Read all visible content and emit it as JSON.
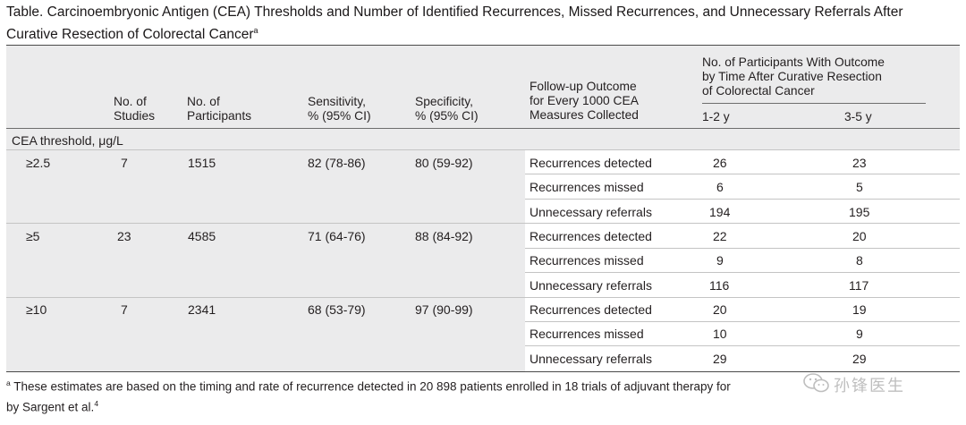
{
  "title": {
    "line1": "Table. Carcinoembryonic Antigen (CEA) Thresholds and Number of Identified Recurrences, Missed Recurrences, and Unnecessary Referrals After",
    "line2": "Curative Resection of Colorectal Cancer",
    "marker": "a"
  },
  "headers": {
    "studies": [
      "No. of",
      "Studies"
    ],
    "participants": [
      "No. of",
      "Participants"
    ],
    "sensitivity": [
      "Sensitivity,",
      "% (95% CI)"
    ],
    "specificity": [
      "Specificity,",
      "% (95% CI)"
    ],
    "followup": [
      "Follow-up Outcome",
      "for Every 1000 CEA",
      "Measures Collected"
    ],
    "outcome_group": [
      "No. of Participants With Outcome",
      "by Time After Curative Resection",
      "of Colorectal Cancer"
    ],
    "time1": "1-2 y",
    "time2": "3-5 y"
  },
  "section_label": "CEA threshold, μg/L",
  "groups": [
    {
      "threshold": "≥2.5",
      "studies": "7",
      "participants": "1515",
      "sensitivity": "82 (78-86)",
      "specificity": "80 (59-92)",
      "outcomes": [
        {
          "label": "Recurrences detected",
          "y12": "26",
          "y35": "23"
        },
        {
          "label": "Recurrences missed",
          "y12": "6",
          "y35": "5"
        },
        {
          "label": "Unnecessary referrals",
          "y12": "194",
          "y35": "195"
        }
      ]
    },
    {
      "threshold": "≥5",
      "studies": "23",
      "participants": "4585",
      "sensitivity": "71 (64-76)",
      "specificity": "88 (84-92)",
      "outcomes": [
        {
          "label": "Recurrences detected",
          "y12": "22",
          "y35": "20"
        },
        {
          "label": "Recurrences missed",
          "y12": "9",
          "y35": "8"
        },
        {
          "label": "Unnecessary referrals",
          "y12": "116",
          "y35": "117"
        }
      ]
    },
    {
      "threshold": "≥10",
      "studies": "7",
      "participants": "2341",
      "sensitivity": "68 (53-79)",
      "specificity": "97 (90-99)",
      "outcomes": [
        {
          "label": "Recurrences detected",
          "y12": "20",
          "y35": "19"
        },
        {
          "label": "Recurrences missed",
          "y12": "10",
          "y35": "9"
        },
        {
          "label": "Unnecessary referrals",
          "y12": "29",
          "y35": "29"
        }
      ]
    }
  ],
  "footnote": {
    "marker": "a",
    "line1": "These estimates are based on the timing and rate of recurrence detected in 20 898 patients enrolled in 18 trials of adjuvant therapy for",
    "line2": "by Sargent et al.",
    "ref": "4"
  },
  "watermark": {
    "icon": "wechat-icon",
    "text": "孙锋医生"
  }
}
